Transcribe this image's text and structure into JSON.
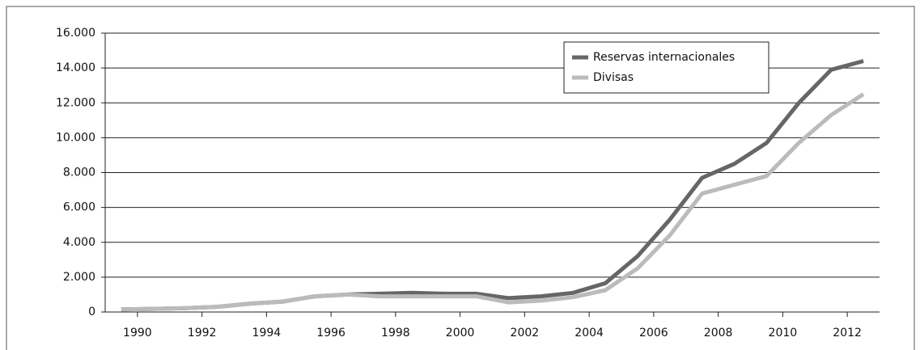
{
  "chart_data": {
    "type": "line",
    "x": [
      1989.5,
      1990.5,
      1991.5,
      1992.5,
      1993.5,
      1994.5,
      1995.5,
      1996.5,
      1997.5,
      1998.5,
      1999.5,
      2000.5,
      2001.5,
      2002.5,
      2003.5,
      2004.5,
      2005.5,
      2006.5,
      2007.5,
      2008.5,
      2009.5,
      2010.5,
      2011.5,
      2012.5
    ],
    "series": [
      {
        "name": "Reservas internacionales",
        "color": "#666666",
        "values": [
          150,
          180,
          220,
          300,
          480,
          600,
          900,
          1000,
          1050,
          1100,
          1050,
          1050,
          800,
          900,
          1100,
          1650,
          3200,
          5300,
          7700,
          8500,
          9700,
          12000,
          13900,
          14400
        ]
      },
      {
        "name": "Divisas",
        "color": "#bbbbbb",
        "values": [
          150,
          180,
          220,
          300,
          480,
          600,
          900,
          1000,
          900,
          900,
          900,
          900,
          550,
          650,
          850,
          1250,
          2500,
          4400,
          6800,
          7300,
          7800,
          9700,
          11300,
          12500
        ]
      }
    ],
    "xlim": [
      1989,
      2013
    ],
    "xticks": [
      1990,
      1992,
      1994,
      1996,
      1998,
      2000,
      2002,
      2004,
      2006,
      2008,
      2010,
      2012
    ],
    "ylim": [
      0,
      16000
    ],
    "yticks": [
      0,
      {
        "value": 2000,
        "label": "2.000"
      },
      {
        "value": 4000,
        "label": "4.000"
      },
      {
        "value": 6000,
        "label": "6.000"
      },
      {
        "value": 8000,
        "label": "8.000"
      },
      {
        "value": 10000,
        "label": "10.000"
      },
      {
        "value": 12000,
        "label": "12.000"
      },
      {
        "value": 14000,
        "label": "14.000"
      },
      {
        "value": 16000,
        "label": "16.000"
      }
    ],
    "grid": true,
    "legend": "top-right"
  }
}
